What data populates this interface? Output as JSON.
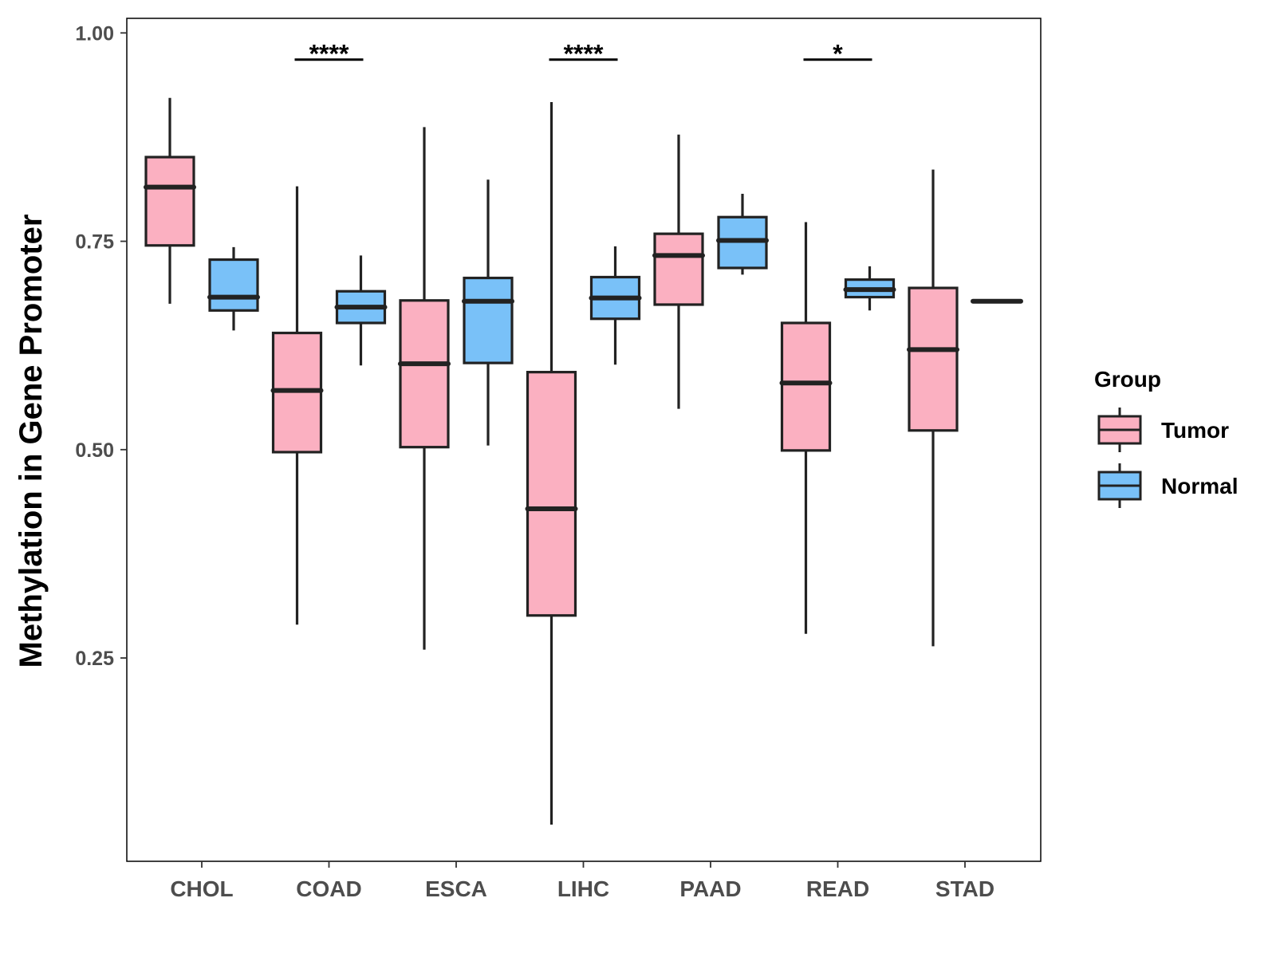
{
  "chart_data": {
    "type": "boxplot",
    "title": "",
    "xlabel": "",
    "ylabel": "Methylation in Gene Promoter",
    "ylim": [
      0.0,
      1.02
    ],
    "yticks": [
      0.25,
      0.5,
      0.75,
      1.0
    ],
    "ytick_labels": [
      "0.25",
      "0.50",
      "0.75",
      "1.00"
    ],
    "categories": [
      "CHOL",
      "COAD",
      "ESCA",
      "LIHC",
      "PAAD",
      "READ",
      "STAD"
    ],
    "legend": {
      "title": "Group",
      "position": "right"
    },
    "series": [
      {
        "name": "Tumor",
        "color": "#FBB0C1",
        "boxes": [
          {
            "min": 0.675,
            "q1": 0.745,
            "median": 0.815,
            "q3": 0.851,
            "max": 0.922
          },
          {
            "min": 0.29,
            "q1": 0.497,
            "median": 0.571,
            "q3": 0.64,
            "max": 0.816
          },
          {
            "min": 0.26,
            "q1": 0.503,
            "median": 0.603,
            "q3": 0.679,
            "max": 0.887
          },
          {
            "min": 0.05,
            "q1": 0.301,
            "median": 0.429,
            "q3": 0.593,
            "max": 0.917
          },
          {
            "min": 0.549,
            "q1": 0.674,
            "median": 0.733,
            "q3": 0.759,
            "max": 0.878
          },
          {
            "min": 0.279,
            "q1": 0.499,
            "median": 0.58,
            "q3": 0.652,
            "max": 0.773
          },
          {
            "min": 0.264,
            "q1": 0.523,
            "median": 0.62,
            "q3": 0.694,
            "max": 0.836
          }
        ]
      },
      {
        "name": "Normal",
        "color": "#79C1F8",
        "boxes": [
          {
            "min": 0.643,
            "q1": 0.667,
            "median": 0.683,
            "q3": 0.728,
            "max": 0.743
          },
          {
            "min": 0.601,
            "q1": 0.652,
            "median": 0.671,
            "q3": 0.69,
            "max": 0.733
          },
          {
            "min": 0.505,
            "q1": 0.604,
            "median": 0.678,
            "q3": 0.706,
            "max": 0.824
          },
          {
            "min": 0.602,
            "q1": 0.657,
            "median": 0.682,
            "q3": 0.707,
            "max": 0.744
          },
          {
            "min": 0.71,
            "q1": 0.718,
            "median": 0.751,
            "q3": 0.779,
            "max": 0.807
          },
          {
            "min": 0.667,
            "q1": 0.683,
            "median": 0.692,
            "q3": 0.704,
            "max": 0.72
          },
          {
            "min": 0.678,
            "q1": 0.678,
            "median": 0.678,
            "q3": 0.678,
            "max": 0.678
          }
        ]
      }
    ],
    "significance": [
      {
        "category": "COAD",
        "label": "****",
        "y": 0.968
      },
      {
        "category": "LIHC",
        "label": "****",
        "y": 0.968
      },
      {
        "category": "READ",
        "label": "*",
        "y": 0.968
      }
    ]
  }
}
